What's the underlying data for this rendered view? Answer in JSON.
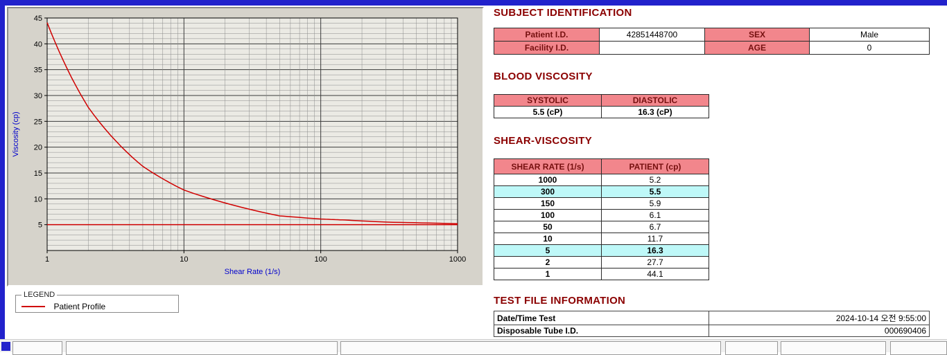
{
  "colors": {
    "heading": "#8B0000",
    "table_header_bg": "#F2868C",
    "highlight_bg": "#BEF8F8",
    "accent_blue": "#2222CC",
    "line_color": "#D00000",
    "axis_label_color": "#0000CC"
  },
  "chart": {
    "ylabel": "Viscosity (cp)",
    "xlabel": "Shear Rate (1/s)",
    "legend_title": "LEGEND",
    "legend_label": "Patient Profile",
    "y_ticks": [
      45,
      40,
      35,
      30,
      25,
      20,
      15,
      10,
      5
    ],
    "x_ticks": [
      1,
      10,
      100,
      1000
    ]
  },
  "chart_data": {
    "type": "line",
    "title": "",
    "xlabel": "Shear Rate (1/s)",
    "ylabel": "Viscosity (cp)",
    "xscale": "log",
    "xlim": [
      1,
      1000
    ],
    "ylim": [
      0,
      45
    ],
    "grid": true,
    "legend_position": "below-left",
    "x": [
      1,
      2,
      5,
      10,
      50,
      100,
      150,
      300,
      1000
    ],
    "series": [
      {
        "name": "Patient Profile",
        "values": [
          44.1,
          27.7,
          16.3,
          11.7,
          6.7,
          6.1,
          5.9,
          5.5,
          5.2
        ]
      }
    ],
    "baseline": 5.0
  },
  "subject": {
    "heading": "SUBJECT IDENTIFICATION",
    "rows": [
      {
        "label1": "Patient I.D.",
        "value1": "42851448700",
        "label2": "SEX",
        "value2": "Male"
      },
      {
        "label1": "Facility I.D.",
        "value1": "",
        "label2": "AGE",
        "value2": "0"
      }
    ]
  },
  "blood": {
    "heading": "BLOOD VISCOSITY",
    "columns": [
      "SYSTOLIC",
      "DIASTOLIC"
    ],
    "values": [
      "5.5 (cP)",
      "16.3 (cP)"
    ]
  },
  "shear": {
    "heading": "SHEAR-VISCOSITY",
    "columns": [
      "SHEAR RATE (1/s)",
      "PATIENT (cp)"
    ],
    "rows": [
      {
        "rate": "1000",
        "value": "5.2",
        "highlight": false
      },
      {
        "rate": "300",
        "value": "5.5",
        "highlight": true
      },
      {
        "rate": "150",
        "value": "5.9",
        "highlight": false
      },
      {
        "rate": "100",
        "value": "6.1",
        "highlight": false
      },
      {
        "rate": "50",
        "value": "6.7",
        "highlight": false
      },
      {
        "rate": "10",
        "value": "11.7",
        "highlight": false
      },
      {
        "rate": "5",
        "value": "16.3",
        "highlight": true
      },
      {
        "rate": "2",
        "value": "27.7",
        "highlight": false
      },
      {
        "rate": "1",
        "value": "44.1",
        "highlight": false
      }
    ]
  },
  "testfile": {
    "heading": "TEST FILE INFORMATION",
    "rows": [
      {
        "label": "Date/Time Test",
        "value": "2024-10-14   오전 9:55:00"
      },
      {
        "label": "Disposable Tube I.D.",
        "value": "000690406"
      }
    ]
  }
}
